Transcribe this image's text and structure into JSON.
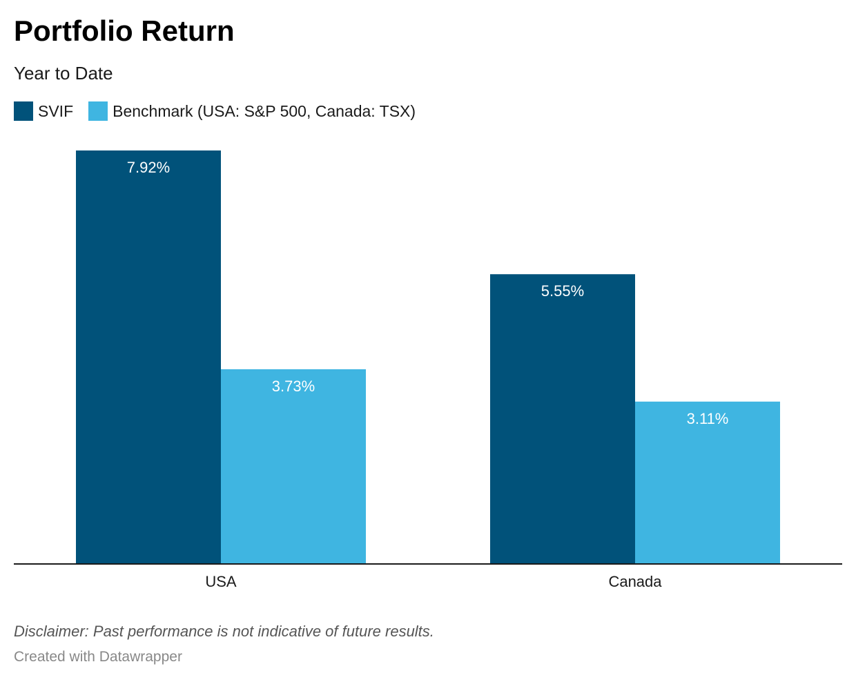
{
  "title": "Portfolio Return",
  "subtitle": "Year to Date",
  "colors": {
    "svif": "#01527a",
    "benchmark": "#3fb5e1",
    "axis": "#1a1a1a",
    "label_text": "#ffffff"
  },
  "legend": [
    {
      "label": "SVIF",
      "color": "#01527a"
    },
    {
      "label": "Benchmark (USA: S&P 500, Canada: TSX)",
      "color": "#3fb5e1"
    }
  ],
  "chart_data": {
    "type": "bar",
    "categories": [
      "USA",
      "Canada"
    ],
    "series": [
      {
        "name": "SVIF",
        "values": [
          7.92,
          5.55
        ],
        "labels": [
          "7.92%",
          "5.55%"
        ]
      },
      {
        "name": "Benchmark (USA: S&P 500, Canada: TSX)",
        "values": [
          3.73,
          3.11
        ],
        "labels": [
          "3.73%",
          "3.11%"
        ]
      }
    ],
    "ylim": [
      0,
      7.92
    ],
    "grid": false,
    "legend_position": "top-left"
  },
  "footer": {
    "disclaimer": "Disclaimer: Past performance is not indicative of future results.",
    "credit": "Created with Datawrapper"
  }
}
